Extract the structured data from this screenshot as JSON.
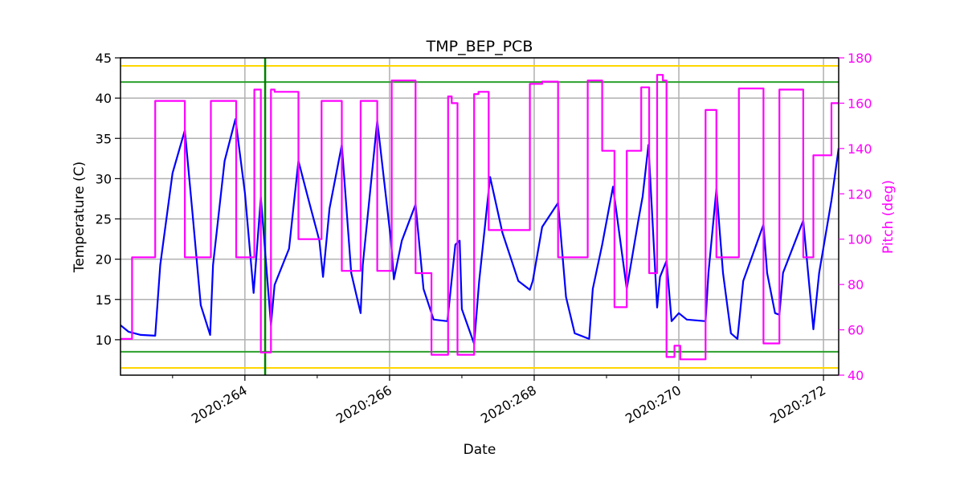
{
  "chart_data": {
    "type": "line",
    "title": "TMP_BEP_PCB",
    "xlabel": "Date",
    "ylabel": "Temperature (C)",
    "y2label": "Pitch (deg)",
    "xlim": [
      262.28,
      272.21
    ],
    "ylim": [
      5.6,
      45
    ],
    "y2lim": [
      40,
      180
    ],
    "grid": true,
    "xticks": [
      {
        "value": 264,
        "label": "2020:264"
      },
      {
        "value": 266,
        "label": "2020:266"
      },
      {
        "value": 268,
        "label": "2020:268"
      },
      {
        "value": 270,
        "label": "2020:270"
      },
      {
        "value": 272,
        "label": "2020:272"
      }
    ],
    "xminor": [
      263,
      265,
      267,
      269,
      271
    ],
    "yticks": [
      10,
      15,
      20,
      25,
      30,
      35,
      40,
      45
    ],
    "y2ticks": [
      40,
      60,
      80,
      100,
      120,
      140,
      160,
      180
    ],
    "colors": {
      "temperature": "#0000ff",
      "pitch": "#ff00ff",
      "y2axis": "#ff00ff",
      "caution": "#ffd700",
      "planning": "#2ca02c",
      "marker": "#008000"
    },
    "hlines": [
      {
        "value": 44,
        "color": "#ffd700"
      },
      {
        "value": 6.5,
        "color": "#ffd700"
      },
      {
        "value": 42,
        "color": "#2ca02c"
      },
      {
        "value": 8.5,
        "color": "#2ca02c"
      }
    ],
    "vline": {
      "value": 264.28,
      "color": "#008000"
    },
    "series": [
      {
        "axis": "left",
        "color": "#0000ff",
        "points": [
          [
            262.28,
            11.8
          ],
          [
            262.39,
            11.0
          ],
          [
            262.56,
            10.6
          ],
          [
            262.76,
            10.5
          ],
          [
            262.83,
            19.3
          ],
          [
            263.0,
            30.7
          ],
          [
            263.17,
            36.0
          ],
          [
            263.28,
            25.3
          ],
          [
            263.39,
            14.3
          ],
          [
            263.52,
            10.6
          ],
          [
            263.56,
            19.3
          ],
          [
            263.72,
            32.2
          ],
          [
            263.87,
            37.4
          ],
          [
            264.0,
            28.2
          ],
          [
            264.12,
            15.8
          ],
          [
            264.22,
            27.7
          ],
          [
            264.36,
            11.8
          ],
          [
            264.41,
            16.8
          ],
          [
            264.61,
            21.3
          ],
          [
            264.74,
            32.2
          ],
          [
            264.87,
            27.7
          ],
          [
            265.03,
            22.3
          ],
          [
            265.08,
            17.8
          ],
          [
            265.17,
            26.3
          ],
          [
            265.34,
            34.2
          ],
          [
            265.47,
            18.3
          ],
          [
            265.6,
            13.3
          ],
          [
            265.63,
            19.3
          ],
          [
            265.83,
            37.2
          ],
          [
            266.02,
            22.3
          ],
          [
            266.06,
            17.5
          ],
          [
            266.17,
            22.3
          ],
          [
            266.36,
            26.8
          ],
          [
            266.47,
            16.3
          ],
          [
            266.61,
            12.5
          ],
          [
            266.8,
            12.3
          ],
          [
            266.91,
            21.8
          ],
          [
            266.97,
            22.3
          ],
          [
            267.0,
            13.8
          ],
          [
            267.17,
            9.5
          ],
          [
            267.24,
            17.3
          ],
          [
            267.39,
            30.2
          ],
          [
            267.56,
            23.3
          ],
          [
            267.78,
            17.3
          ],
          [
            267.94,
            16.2
          ],
          [
            267.98,
            17.3
          ],
          [
            268.11,
            24.0
          ],
          [
            268.33,
            27.0
          ],
          [
            268.44,
            15.3
          ],
          [
            268.56,
            10.8
          ],
          [
            268.76,
            10.1
          ],
          [
            268.81,
            16.3
          ],
          [
            268.94,
            21.8
          ],
          [
            269.09,
            29.0
          ],
          [
            269.28,
            16.3
          ],
          [
            269.44,
            24.8
          ],
          [
            269.5,
            27.8
          ],
          [
            269.58,
            34.2
          ],
          [
            269.7,
            14.0
          ],
          [
            269.74,
            17.8
          ],
          [
            269.83,
            19.8
          ],
          [
            269.9,
            12.3
          ],
          [
            270.0,
            13.3
          ],
          [
            270.11,
            12.5
          ],
          [
            270.37,
            12.3
          ],
          [
            270.41,
            18.3
          ],
          [
            270.52,
            28.7
          ],
          [
            270.61,
            18.3
          ],
          [
            270.72,
            10.8
          ],
          [
            270.81,
            10.1
          ],
          [
            270.89,
            17.3
          ],
          [
            271.17,
            24.3
          ],
          [
            271.22,
            18.3
          ],
          [
            271.33,
            13.3
          ],
          [
            271.39,
            13.1
          ],
          [
            271.44,
            18.3
          ],
          [
            271.72,
            24.8
          ],
          [
            271.86,
            11.3
          ],
          [
            271.94,
            18.3
          ],
          [
            272.11,
            27.3
          ],
          [
            272.21,
            33.8
          ]
        ]
      },
      {
        "axis": "right",
        "color": "#ff00ff",
        "step": "post",
        "points": [
          [
            262.28,
            56
          ],
          [
            262.44,
            92
          ],
          [
            262.76,
            161
          ],
          [
            263.17,
            92
          ],
          [
            263.53,
            161
          ],
          [
            263.88,
            92
          ],
          [
            264.13,
            166
          ],
          [
            264.22,
            50
          ],
          [
            264.36,
            166
          ],
          [
            264.41,
            165
          ],
          [
            264.74,
            100
          ],
          [
            265.06,
            161
          ],
          [
            265.34,
            86
          ],
          [
            265.6,
            161
          ],
          [
            265.83,
            86
          ],
          [
            266.03,
            170
          ],
          [
            266.36,
            85
          ],
          [
            266.58,
            49
          ],
          [
            266.81,
            163
          ],
          [
            266.86,
            160
          ],
          [
            266.94,
            49
          ],
          [
            267.17,
            164
          ],
          [
            267.23,
            165
          ],
          [
            267.37,
            104
          ],
          [
            267.94,
            168.5
          ],
          [
            268.11,
            169.5
          ],
          [
            268.33,
            92
          ],
          [
            268.74,
            170
          ],
          [
            268.94,
            139
          ],
          [
            269.11,
            70
          ],
          [
            269.28,
            139
          ],
          [
            269.48,
            167
          ],
          [
            269.59,
            85
          ],
          [
            269.7,
            172.5
          ],
          [
            269.78,
            170
          ],
          [
            269.83,
            48
          ],
          [
            269.94,
            53
          ],
          [
            270.02,
            47
          ],
          [
            270.37,
            157
          ],
          [
            270.52,
            92
          ],
          [
            270.83,
            166.5
          ],
          [
            271.17,
            54
          ],
          [
            271.39,
            166
          ],
          [
            271.72,
            92
          ],
          [
            271.86,
            137
          ],
          [
            272.11,
            160
          ],
          [
            272.21,
            160
          ]
        ]
      }
    ]
  }
}
